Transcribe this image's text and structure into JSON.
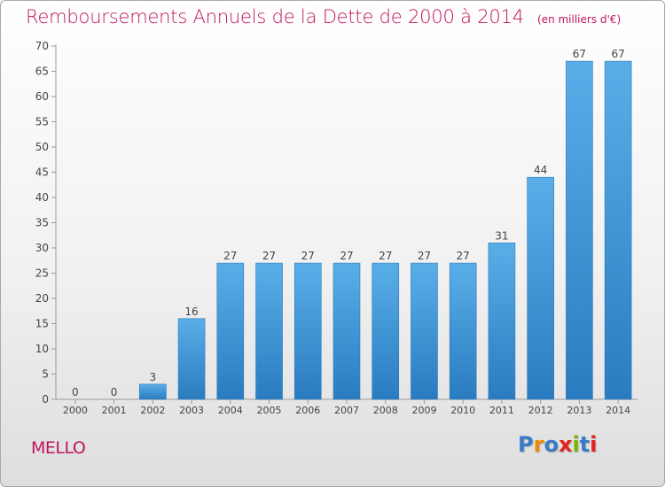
{
  "title": "Remboursements Annuels de la Dette de 2000 à 2014",
  "subtitle": "(en milliers d'€)",
  "place": "MELLO",
  "logo": {
    "text": "Proxiti",
    "colors": [
      "#3a7bc8",
      "#f08a00",
      "#3a7bc8",
      "#e0261c",
      "#7ab800",
      "#3a7bc8",
      "#e0261c"
    ]
  },
  "colors": {
    "title": "#c0145c",
    "bar_top": "#5aaee8",
    "bar_bottom": "#2a7cc0"
  },
  "chart_data": {
    "type": "bar",
    "categories": [
      "2000",
      "2001",
      "2002",
      "2003",
      "2004",
      "2005",
      "2006",
      "2007",
      "2008",
      "2009",
      "2010",
      "2011",
      "2012",
      "2013",
      "2014"
    ],
    "values": [
      0,
      0,
      3,
      16,
      27,
      27,
      27,
      27,
      27,
      27,
      27,
      31,
      44,
      67,
      67
    ],
    "ylim": [
      0,
      70
    ],
    "yticks": [
      0,
      5,
      10,
      15,
      20,
      25,
      30,
      35,
      40,
      45,
      50,
      55,
      60,
      65,
      70
    ],
    "grid": false,
    "data_labels": true
  }
}
